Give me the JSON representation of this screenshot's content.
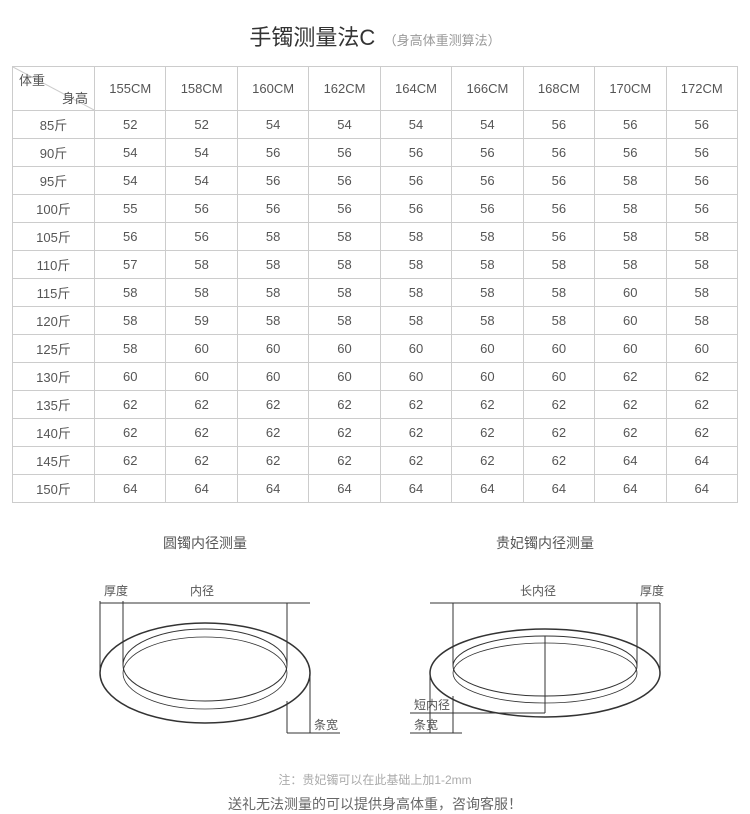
{
  "title": {
    "main": "手镯测量法C",
    "sub": "（身高体重测算法）"
  },
  "corner": {
    "top": "体重",
    "bottom": "身高"
  },
  "heights": [
    "155CM",
    "158CM",
    "160CM",
    "162CM",
    "164CM",
    "166CM",
    "168CM",
    "170CM",
    "172CM"
  ],
  "rows": [
    {
      "w": "85斤",
      "v": [
        "52",
        "52",
        "54",
        "54",
        "54",
        "54",
        "56",
        "56",
        "56"
      ]
    },
    {
      "w": "90斤",
      "v": [
        "54",
        "54",
        "56",
        "56",
        "56",
        "56",
        "56",
        "56",
        "56"
      ]
    },
    {
      "w": "95斤",
      "v": [
        "54",
        "54",
        "56",
        "56",
        "56",
        "56",
        "56",
        "58",
        "56"
      ]
    },
    {
      "w": "100斤",
      "v": [
        "55",
        "56",
        "56",
        "56",
        "56",
        "56",
        "56",
        "58",
        "56"
      ]
    },
    {
      "w": "105斤",
      "v": [
        "56",
        "56",
        "58",
        "58",
        "58",
        "58",
        "56",
        "58",
        "58"
      ]
    },
    {
      "w": "110斤",
      "v": [
        "57",
        "58",
        "58",
        "58",
        "58",
        "58",
        "58",
        "58",
        "58"
      ]
    },
    {
      "w": "115斤",
      "v": [
        "58",
        "58",
        "58",
        "58",
        "58",
        "58",
        "58",
        "60",
        "58"
      ]
    },
    {
      "w": "120斤",
      "v": [
        "58",
        "59",
        "58",
        "58",
        "58",
        "58",
        "58",
        "60",
        "58"
      ]
    },
    {
      "w": "125斤",
      "v": [
        "58",
        "60",
        "60",
        "60",
        "60",
        "60",
        "60",
        "60",
        "60"
      ]
    },
    {
      "w": "130斤",
      "v": [
        "60",
        "60",
        "60",
        "60",
        "60",
        "60",
        "60",
        "62",
        "62"
      ]
    },
    {
      "w": "135斤",
      "v": [
        "62",
        "62",
        "62",
        "62",
        "62",
        "62",
        "62",
        "62",
        "62"
      ]
    },
    {
      "w": "140斤",
      "v": [
        "62",
        "62",
        "62",
        "62",
        "62",
        "62",
        "62",
        "62",
        "62"
      ]
    },
    {
      "w": "145斤",
      "v": [
        "62",
        "62",
        "62",
        "62",
        "62",
        "62",
        "62",
        "64",
        "64"
      ]
    },
    {
      "w": "150斤",
      "v": [
        "64",
        "64",
        "64",
        "64",
        "64",
        "64",
        "64",
        "64",
        "64"
      ]
    }
  ],
  "diagrams": {
    "left": {
      "title": "圆镯内径测量",
      "labels": {
        "thickness": "厚度",
        "inner": "内径",
        "bandwidth": "条宽"
      }
    },
    "right": {
      "title": "贵妃镯内径测量",
      "labels": {
        "longInner": "长内径",
        "thickness": "厚度",
        "shortInner": "短内径",
        "bandwidth": "条宽"
      }
    }
  },
  "notes": {
    "small": "注：贵妃镯可以在此基础上加1-2mm",
    "big": "送礼无法测量的可以提供身高体重，咨询客服！"
  },
  "style": {
    "border_color": "#cccccc",
    "text_color": "#555555",
    "title_color": "#333333",
    "subtitle_color": "#999999",
    "note_small_color": "#aaaaaa",
    "note_big_color": "#666666",
    "ellipse_stroke": "#333333",
    "background": "#ffffff",
    "title_fontsize": 22,
    "cell_fontsize": 13,
    "diagram_title_fontsize": 14
  }
}
